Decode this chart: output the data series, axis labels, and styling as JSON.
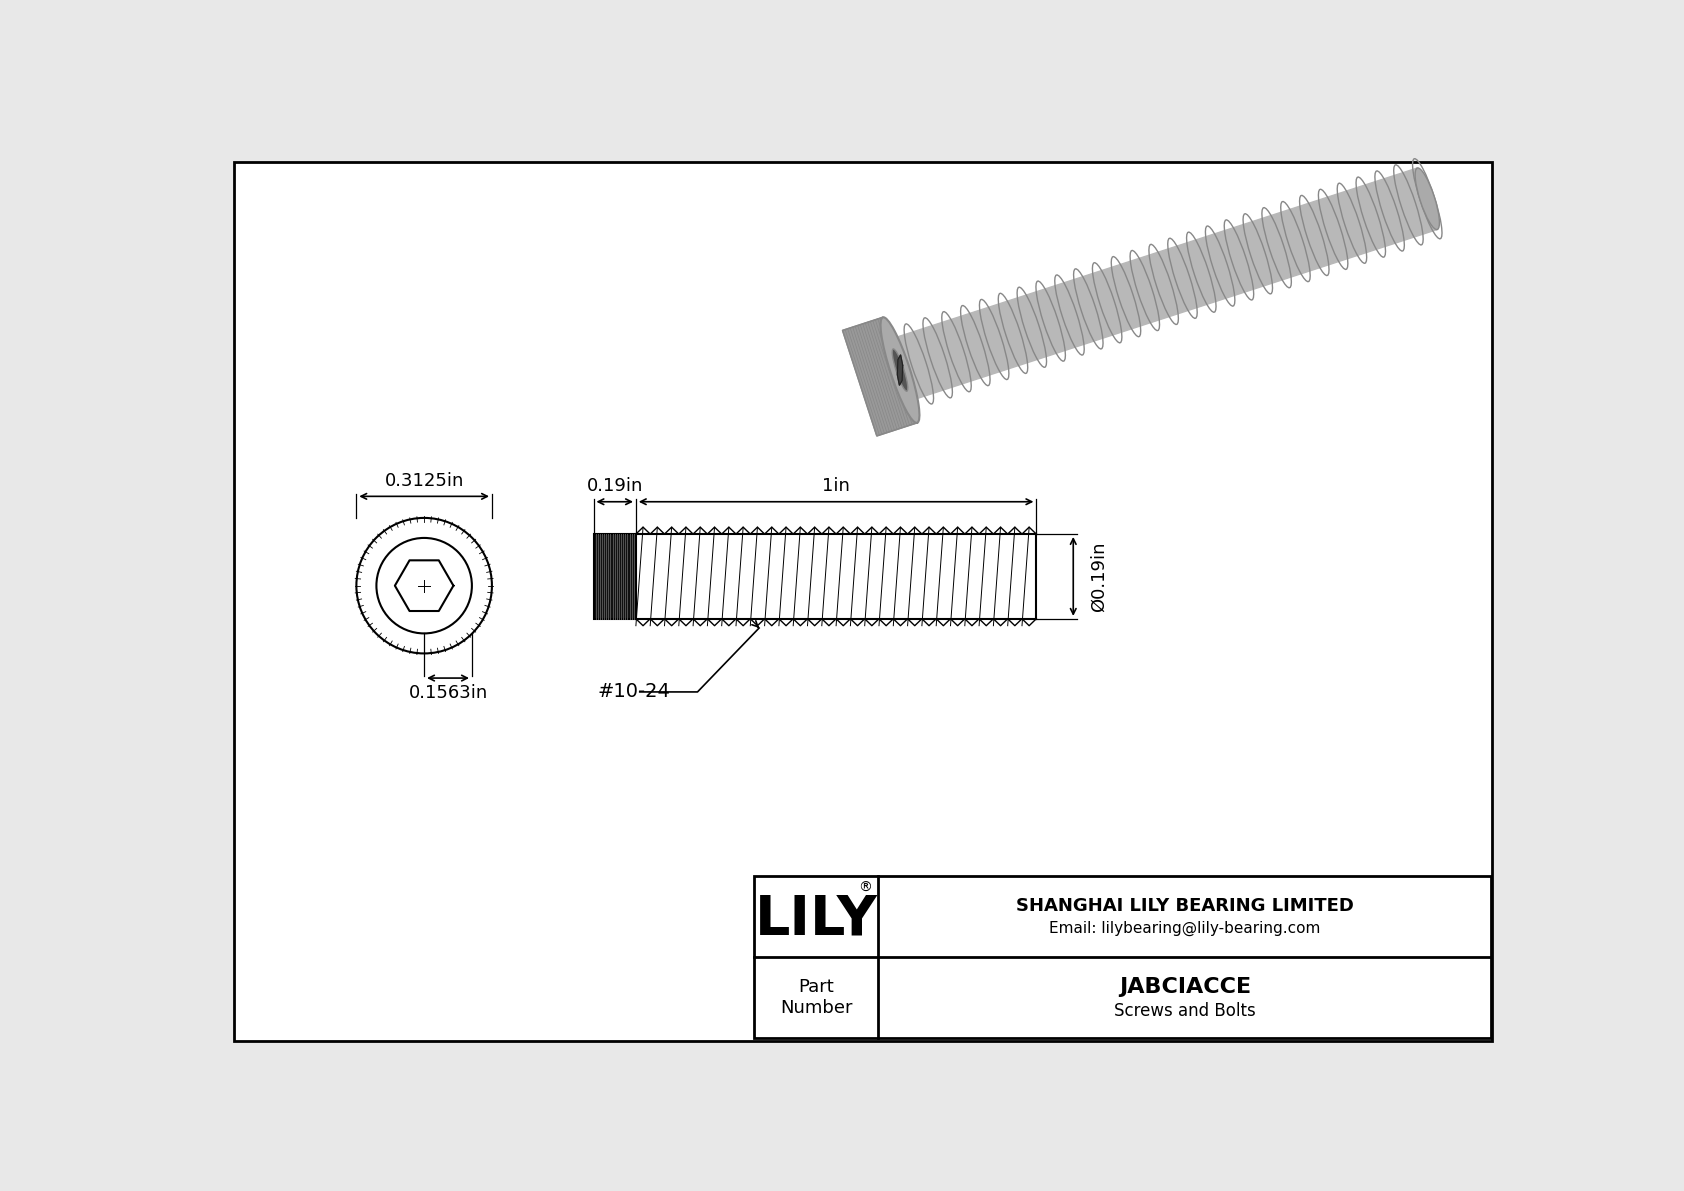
{
  "bg_color": "#e8e8e8",
  "inner_bg": "#ffffff",
  "border_color": "#000000",
  "line_color": "#000000",
  "title": "JABCIACCE",
  "subtitle": "Screws and Bolts",
  "company": "SHANGHAI LILY BEARING LIMITED",
  "email": "Email: lilybearing@lily-bearing.com",
  "part_label": "Part\nNumber",
  "dim_head_width": "0.3125in",
  "dim_head_inner": "0.1563in",
  "dim_length": "1in",
  "dim_head_length": "0.19in",
  "dim_diameter": "Ø0.19in",
  "thread_label": "#10-24",
  "lily_text": "LILY",
  "lily_reg": "®",
  "gray_light": "#c8c8c8",
  "gray_mid": "#aaaaaa",
  "gray_dark": "#888888",
  "gray_body": "#b8b8b8",
  "gray_head_side": "#999999",
  "gray_socket": "#555555",
  "gray_hex": "#444444"
}
